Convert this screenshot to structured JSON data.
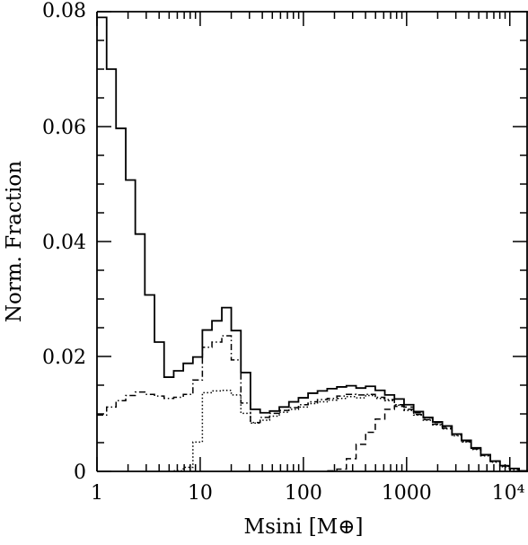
{
  "chart_data": {
    "type": "histogram",
    "xscale": "log",
    "xlim": [
      1,
      15000
    ],
    "ylim": [
      0,
      0.08
    ],
    "xlabel": "Msini [M⊕]",
    "ylabel": "Norm. Fraction",
    "x_ticks": [
      {
        "value": 1,
        "label": "1"
      },
      {
        "value": 10,
        "label": "10"
      },
      {
        "value": 100,
        "label": "100"
      },
      {
        "value": 1000,
        "label": "1000"
      },
      {
        "value": 10000,
        "label": "10⁴"
      }
    ],
    "y_ticks": [
      {
        "value": 0,
        "label": "0"
      },
      {
        "value": 0.02,
        "label": "0.02"
      },
      {
        "value": 0.04,
        "label": "0.04"
      },
      {
        "value": 0.06,
        "label": "0.06"
      },
      {
        "value": 0.08,
        "label": "0.08"
      }
    ],
    "bin_edges": [
      1.0,
      1.24,
      1.53,
      1.9,
      2.35,
      2.91,
      3.61,
      4.47,
      5.54,
      6.86,
      8.5,
      10.5,
      13.0,
      16.2,
      20.0,
      24.8,
      30.7,
      38.1,
      47.1,
      58.4,
      72.4,
      89.6,
      111,
      137,
      170,
      211,
      261,
      324,
      401,
      497,
      615,
      762,
      944,
      1170,
      1450,
      1790,
      2220,
      2750,
      3410,
      4220,
      5230,
      6480,
      8030,
      9940,
      12300,
      15000
    ],
    "series": [
      {
        "style": "solid",
        "values": [
          0.079,
          0.07,
          0.0597,
          0.0507,
          0.0413,
          0.0307,
          0.0225,
          0.0164,
          0.0175,
          0.0188,
          0.0199,
          0.0246,
          0.0262,
          0.0285,
          0.0245,
          0.0172,
          0.0108,
          0.0102,
          0.0105,
          0.0112,
          0.0121,
          0.0128,
          0.0136,
          0.014,
          0.0144,
          0.0147,
          0.0149,
          0.0145,
          0.0148,
          0.0141,
          0.0133,
          0.0126,
          0.0116,
          0.0104,
          0.0094,
          0.0086,
          0.0079,
          0.0065,
          0.0054,
          0.0041,
          0.0029,
          0.0018,
          0.001,
          0.0005,
          0.0001
        ]
      },
      {
        "style": "dash-dot",
        "values": [
          0.0098,
          0.0112,
          0.0123,
          0.0132,
          0.0138,
          0.0134,
          0.0131,
          0.0127,
          0.0129,
          0.0134,
          0.0159,
          0.0216,
          0.0225,
          0.0236,
          0.0194,
          0.0119,
          0.0085,
          0.0094,
          0.0101,
          0.0106,
          0.0111,
          0.0116,
          0.0121,
          0.0125,
          0.0127,
          0.0131,
          0.0134,
          0.0133,
          0.0134,
          0.0129,
          0.0125,
          0.0116,
          0.0108,
          0.0099,
          0.009,
          0.0082,
          0.0075,
          0.0063,
          0.0052,
          0.0039,
          0.0028,
          0.0017,
          0.0009,
          0.0004,
          0.0001
        ]
      },
      {
        "style": "dotted",
        "values": [
          0,
          0,
          0,
          0,
          0,
          0,
          0,
          0,
          0.0001,
          0.0007,
          0.0051,
          0.0137,
          0.014,
          0.0141,
          0.0133,
          0.0101,
          0.0084,
          0.0089,
          0.0096,
          0.0103,
          0.0108,
          0.0112,
          0.0118,
          0.0121,
          0.0124,
          0.0127,
          0.013,
          0.0128,
          0.0132,
          0.0127,
          0.0123,
          0.0115,
          0.0106,
          0.0098,
          0.0089,
          0.0081,
          0.0074,
          0.0062,
          0.0051,
          0.0038,
          0.0027,
          0.0016,
          0.0008,
          0.0003,
          0.0001
        ]
      },
      {
        "style": "dashed",
        "values": [
          0,
          0,
          0,
          0,
          0,
          0,
          0,
          0,
          0,
          0,
          0,
          0,
          0,
          0,
          0,
          0,
          0,
          0,
          0,
          0,
          0,
          0,
          0,
          0,
          0.0001,
          0.0004,
          0.0022,
          0.0047,
          0.0068,
          0.0091,
          0.0108,
          0.0113,
          0.0112,
          0.0102,
          0.0093,
          0.0085,
          0.0078,
          0.0065,
          0.0053,
          0.004,
          0.0029,
          0.0018,
          0.001,
          0.0005,
          0.0001
        ]
      }
    ]
  }
}
